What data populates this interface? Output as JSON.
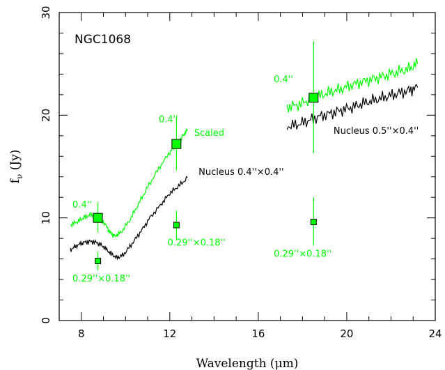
{
  "chart_data": {
    "type": "scatter",
    "title": "NGC1068",
    "xlabel": "Wavelength (μm)",
    "ylabel_main": "f",
    "ylabel_sub": "ν",
    "ylabel_unit": " (Jy)",
    "xlim": [
      7,
      24
    ],
    "ylim": [
      0,
      30
    ],
    "x_ticks": [
      8,
      12,
      16,
      20,
      24
    ],
    "y_ticks": [
      0,
      10,
      20,
      30
    ],
    "colors": {
      "green": "#00ff00",
      "black": "#000000",
      "marker_edge": "#000000"
    },
    "spectra": [
      {
        "color": "green",
        "points": [
          [
            7.5,
            9.3
          ],
          [
            7.8,
            9.6
          ],
          [
            8.1,
            10.0
          ],
          [
            8.4,
            10.3
          ],
          [
            8.7,
            10.2
          ],
          [
            9.0,
            9.6
          ],
          [
            9.3,
            8.6
          ],
          [
            9.5,
            8.2
          ],
          [
            9.8,
            8.6
          ],
          [
            10.2,
            9.8
          ],
          [
            10.6,
            11.4
          ],
          [
            11.0,
            13.0
          ],
          [
            11.5,
            14.8
          ],
          [
            12.0,
            16.4
          ],
          [
            12.3,
            17.1
          ],
          [
            12.6,
            18.0
          ],
          [
            12.8,
            18.6
          ]
        ]
      },
      {
        "color": "black",
        "points": [
          [
            7.5,
            6.9
          ],
          [
            7.8,
            7.3
          ],
          [
            8.1,
            7.6
          ],
          [
            8.4,
            7.7
          ],
          [
            8.7,
            7.6
          ],
          [
            9.0,
            7.2
          ],
          [
            9.3,
            6.6
          ],
          [
            9.6,
            6.1
          ],
          [
            9.9,
            6.4
          ],
          [
            10.3,
            7.5
          ],
          [
            10.7,
            8.7
          ],
          [
            11.1,
            10.0
          ],
          [
            11.6,
            11.3
          ],
          [
            12.0,
            12.4
          ],
          [
            12.4,
            13.1
          ],
          [
            12.8,
            13.9
          ]
        ]
      },
      {
        "color": "green",
        "points": [
          [
            17.3,
            20.8
          ],
          [
            17.8,
            21.0
          ],
          [
            18.3,
            21.5
          ],
          [
            18.8,
            21.9
          ],
          [
            19.3,
            22.3
          ],
          [
            19.8,
            22.6
          ],
          [
            20.3,
            23.0
          ],
          [
            20.8,
            23.3
          ],
          [
            21.3,
            23.6
          ],
          [
            21.8,
            23.9
          ],
          [
            22.3,
            24.2
          ],
          [
            22.8,
            24.5
          ],
          [
            23.2,
            25.0
          ]
        ]
      },
      {
        "color": "black",
        "points": [
          [
            17.3,
            18.9
          ],
          [
            17.8,
            19.1
          ],
          [
            18.3,
            19.5
          ],
          [
            18.8,
            19.9
          ],
          [
            19.3,
            20.2
          ],
          [
            19.8,
            20.5
          ],
          [
            20.3,
            20.8
          ],
          [
            20.8,
            21.2
          ],
          [
            21.3,
            21.5
          ],
          [
            21.8,
            21.8
          ],
          [
            22.3,
            22.1
          ],
          [
            22.8,
            22.4
          ],
          [
            23.2,
            22.7
          ]
        ]
      }
    ],
    "photometry": [
      {
        "x": 8.75,
        "y": 10.0,
        "yerr_low": 1.4,
        "yerr_high": 1.5,
        "size": "large"
      },
      {
        "x": 12.3,
        "y": 17.2,
        "yerr_low": 2.6,
        "yerr_high": 2.6,
        "size": "large"
      },
      {
        "x": 18.5,
        "y": 21.7,
        "yerr_low": 5.4,
        "yerr_high": 5.5,
        "size": "large"
      },
      {
        "x": 8.75,
        "y": 5.8,
        "yerr_low": 0.9,
        "yerr_high": 0.9,
        "size": "small"
      },
      {
        "x": 12.3,
        "y": 9.3,
        "yerr_low": 1.5,
        "yerr_high": 1.4,
        "size": "small"
      },
      {
        "x": 18.5,
        "y": 9.6,
        "yerr_low": 2.3,
        "yerr_high": 2.4,
        "size": "small"
      }
    ],
    "annotations": [
      {
        "text": "0.4''",
        "x": 7.6,
        "y": 11.0,
        "color": "green"
      },
      {
        "text": "0.4''",
        "x": 11.5,
        "y": 19.3,
        "color": "green"
      },
      {
        "text": "0.4''",
        "x": 16.7,
        "y": 23.2,
        "color": "green"
      },
      {
        "text": "Scaled",
        "x": 13.1,
        "y": 18.0,
        "color": "green"
      },
      {
        "text": "Nucleus 0.4''×0.4''",
        "x": 13.3,
        "y": 14.2,
        "color": "black"
      },
      {
        "text": "Nucleus 0.5''×0.4''",
        "x": 19.4,
        "y": 18.2,
        "color": "black"
      },
      {
        "text": "0.29''×0.18''",
        "x": 7.6,
        "y": 3.8,
        "color": "green"
      },
      {
        "text": "0.29''×0.18''",
        "x": 11.9,
        "y": 7.3,
        "color": "green"
      },
      {
        "text": "0.29''×0.18''",
        "x": 16.7,
        "y": 6.2,
        "color": "green"
      }
    ]
  }
}
